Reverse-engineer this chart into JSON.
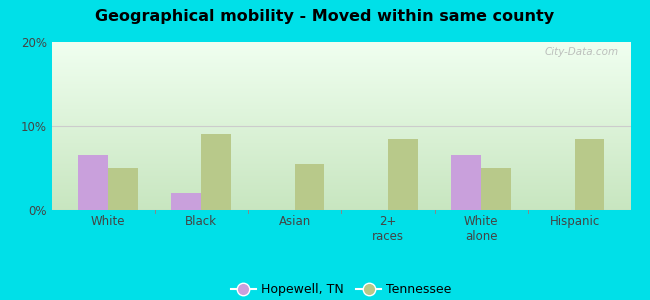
{
  "title": "Geographical mobility - Moved within same county",
  "categories": [
    "White",
    "Black",
    "Asian",
    "2+\nraces",
    "White\nalone",
    "Hispanic"
  ],
  "hopewell": [
    6.5,
    2.0,
    0,
    0,
    6.5,
    0
  ],
  "tennessee": [
    5.0,
    9.0,
    5.5,
    8.5,
    5.0,
    8.5
  ],
  "hopewell_color": "#c9a0dc",
  "tennessee_color": "#b8c98a",
  "ylim": [
    0,
    20
  ],
  "yticks": [
    0,
    10,
    20
  ],
  "ytick_labels": [
    "0%",
    "10%",
    "20%"
  ],
  "grad_top": "#c8e6c0",
  "grad_bottom": "#f0fff0",
  "outer_color": "#00e0e8",
  "bar_width": 0.32,
  "legend_hopewell": "Hopewell, TN",
  "legend_tennessee": "Tennessee",
  "watermark": "City-Data.com"
}
